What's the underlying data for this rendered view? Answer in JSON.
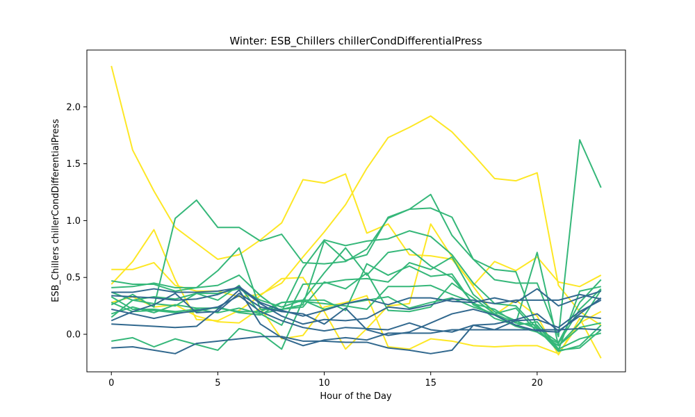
{
  "chart_data": {
    "type": "line",
    "title": "Winter: ESB_Chillers chillerCondDifferentialPress",
    "xlabel": "Hour of the Day",
    "ylabel": "ESB_Chillers chillerCondDifferentialPress",
    "xlim": [
      -1.15,
      24.15
    ],
    "ylim": [
      -0.33,
      2.5
    ],
    "x_ticks": [
      0,
      5,
      10,
      15,
      20
    ],
    "y_ticks": [
      0.0,
      0.5,
      1.0,
      1.5,
      2.0
    ],
    "x_tick_labels": [
      "0",
      "5",
      "10",
      "15",
      "20"
    ],
    "y_tick_labels": [
      "0.0",
      "0.5",
      "1.0",
      "1.5",
      "2.0"
    ],
    "grid": false,
    "legend": "none",
    "x": [
      0,
      1,
      2,
      3,
      4,
      5,
      6,
      7,
      8,
      9,
      10,
      11,
      12,
      13,
      14,
      15,
      16,
      17,
      18,
      19,
      20,
      21,
      22,
      23
    ],
    "series": [
      {
        "color": "#fde725",
        "values": [
          2.36,
          1.62,
          1.26,
          0.94,
          0.8,
          0.66,
          0.7,
          0.83,
          0.98,
          1.36,
          1.33,
          1.41,
          0.89,
          0.97,
          0.7,
          0.69,
          0.66,
          0.43,
          0.64,
          0.56,
          0.68,
          0.46,
          0.42,
          0.52
        ]
      },
      {
        "color": "#fde725",
        "values": [
          0.57,
          0.57,
          0.63,
          0.43,
          0.38,
          0.38,
          0.33,
          0.35,
          0.45,
          0.68,
          0.9,
          1.14,
          1.46,
          1.73,
          1.82,
          1.92,
          1.78,
          1.58,
          1.37,
          1.35,
          1.42,
          0.43,
          0.2,
          0.08
        ]
      },
      {
        "color": "#fde725",
        "values": [
          0.44,
          0.64,
          0.92,
          0.48,
          0.13,
          0.12,
          0.21,
          0.34,
          0.49,
          0.5,
          0.2,
          -0.13,
          0.05,
          0.25,
          0.27,
          0.97,
          0.68,
          0.42,
          0.17,
          0.3,
          0.16,
          -0.18,
          0.14,
          -0.21
        ]
      },
      {
        "color": "#fde725",
        "values": [
          0.28,
          0.33,
          0.24,
          0.26,
          0.16,
          0.11,
          0.1,
          0.23,
          -0.04,
          -0.01,
          0.24,
          0.28,
          0.34,
          -0.11,
          -0.13,
          -0.04,
          -0.06,
          -0.1,
          -0.11,
          -0.1,
          -0.1,
          -0.17,
          0.1,
          0.2
        ]
      },
      {
        "color": "#35b779",
        "values": [
          0.26,
          0.35,
          0.24,
          1.02,
          1.18,
          0.94,
          0.94,
          0.82,
          0.88,
          0.63,
          0.62,
          0.64,
          0.75,
          1.02,
          1.1,
          1.11,
          1.03,
          0.66,
          0.48,
          0.45,
          0.45,
          -0.02,
          1.71,
          1.29
        ]
      },
      {
        "color": "#35b779",
        "values": [
          0.47,
          0.44,
          0.44,
          0.38,
          0.41,
          0.56,
          0.76,
          0.22,
          0.22,
          0.26,
          0.82,
          0.65,
          0.7,
          1.03,
          1.1,
          1.23,
          0.87,
          0.66,
          0.57,
          0.55,
          0.06,
          -0.07,
          0.28,
          0.48
        ]
      },
      {
        "color": "#35b779",
        "values": [
          0.41,
          0.42,
          0.45,
          0.41,
          0.41,
          0.43,
          0.52,
          0.34,
          0.2,
          0.58,
          0.83,
          0.78,
          0.82,
          0.84,
          0.91,
          0.86,
          0.7,
          0.45,
          0.27,
          0.25,
          0.05,
          -0.15,
          -0.1,
          0.08
        ]
      },
      {
        "color": "#35b779",
        "values": [
          0.15,
          0.3,
          0.33,
          0.31,
          0.36,
          0.36,
          0.4,
          0.3,
          0.24,
          0.3,
          0.54,
          0.76,
          0.52,
          0.72,
          0.75,
          0.6,
          0.5,
          0.27,
          0.22,
          0.1,
          0.72,
          -0.1,
          0.1,
          0.39
        ]
      },
      {
        "color": "#35b779",
        "values": [
          0.37,
          0.3,
          0.27,
          0.25,
          0.36,
          0.3,
          0.43,
          0.18,
          0.08,
          0.44,
          0.45,
          0.48,
          0.49,
          0.46,
          0.63,
          0.57,
          0.68,
          0.35,
          0.2,
          0.12,
          0.05,
          -0.14,
          0.38,
          0.42
        ]
      },
      {
        "color": "#35b779",
        "values": [
          0.33,
          0.22,
          0.22,
          0.2,
          0.22,
          0.19,
          0.23,
          0.18,
          0.22,
          0.24,
          0.46,
          0.4,
          0.54,
          0.21,
          0.2,
          0.24,
          0.45,
          0.32,
          0.18,
          0.23,
          0.02,
          -0.08,
          0.22,
          0.4
        ]
      },
      {
        "color": "#35b779",
        "values": [
          0.28,
          0.2,
          0.21,
          0.19,
          0.2,
          0.24,
          0.19,
          0.17,
          0.28,
          0.29,
          0.27,
          0.25,
          0.22,
          0.42,
          0.42,
          0.43,
          0.35,
          0.28,
          0.14,
          0.08,
          0.11,
          -0.13,
          -0.04,
          0.01
        ]
      },
      {
        "color": "#35b779",
        "values": [
          0.18,
          0.24,
          0.19,
          0.26,
          0.23,
          0.23,
          0.2,
          0.2,
          0.28,
          0.3,
          0.3,
          0.21,
          0.62,
          0.52,
          0.6,
          0.51,
          0.53,
          0.26,
          0.17,
          0.07,
          0.02,
          -0.1,
          0.06,
          0.1
        ]
      },
      {
        "color": "#35b779",
        "values": [
          -0.06,
          -0.03,
          -0.11,
          -0.04,
          -0.09,
          -0.14,
          0.05,
          0.01,
          -0.13,
          0.3,
          0.22,
          0.27,
          0.3,
          0.33,
          0.23,
          0.28,
          0.32,
          0.24,
          0.18,
          0.1,
          0.08,
          -0.14,
          -0.12,
          0.04
        ]
      },
      {
        "color": "#31688e",
        "values": [
          0.34,
          0.33,
          0.32,
          0.3,
          0.31,
          0.35,
          0.42,
          0.28,
          0.21,
          0.16,
          0.21,
          0.27,
          0.31,
          0.26,
          0.32,
          0.32,
          0.29,
          0.28,
          0.32,
          0.28,
          0.4,
          0.25,
          0.32,
          0.38
        ]
      },
      {
        "color": "#31688e",
        "values": [
          0.37,
          0.37,
          0.4,
          0.37,
          0.37,
          0.38,
          0.41,
          0.27,
          0.16,
          0.09,
          0.13,
          0.12,
          0.14,
          0.24,
          0.22,
          0.26,
          0.31,
          0.3,
          0.27,
          0.3,
          0.3,
          0.3,
          0.35,
          0.31
        ]
      },
      {
        "color": "#31688e",
        "values": [
          0.22,
          0.18,
          0.14,
          0.18,
          0.21,
          0.24,
          0.34,
          0.2,
          0.12,
          0.06,
          0.03,
          0.06,
          0.05,
          0.04,
          0.1,
          0.04,
          0.02,
          0.08,
          0.04,
          0.12,
          0.13,
          0.06,
          0.2,
          0.3
        ]
      },
      {
        "color": "#31688e",
        "values": [
          0.09,
          0.08,
          0.07,
          0.06,
          0.07,
          0.22,
          0.39,
          0.09,
          -0.03,
          -0.1,
          -0.05,
          -0.03,
          -0.05,
          0.01,
          0.01,
          0.01,
          0.04,
          0.04,
          0.04,
          0.04,
          0.04,
          0.04,
          0.05,
          0.04
        ]
      },
      {
        "color": "#31688e",
        "values": [
          0.12,
          0.2,
          0.26,
          0.36,
          0.19,
          0.2,
          0.36,
          0.24,
          0.2,
          0.18,
          0.09,
          0.23,
          0.04,
          -0.01,
          0.02,
          0.1,
          0.18,
          0.22,
          0.17,
          0.08,
          0.03,
          0.02,
          0.18,
          0.32
        ]
      },
      {
        "color": "#31688e",
        "values": [
          -0.12,
          -0.11,
          -0.14,
          -0.17,
          -0.08,
          -0.06,
          -0.04,
          -0.02,
          -0.02,
          -0.06,
          -0.06,
          -0.07,
          -0.07,
          -0.12,
          -0.14,
          -0.17,
          -0.14,
          0.08,
          0.09,
          0.13,
          0.18,
          0.03,
          0.16,
          0.14
        ]
      }
    ]
  }
}
